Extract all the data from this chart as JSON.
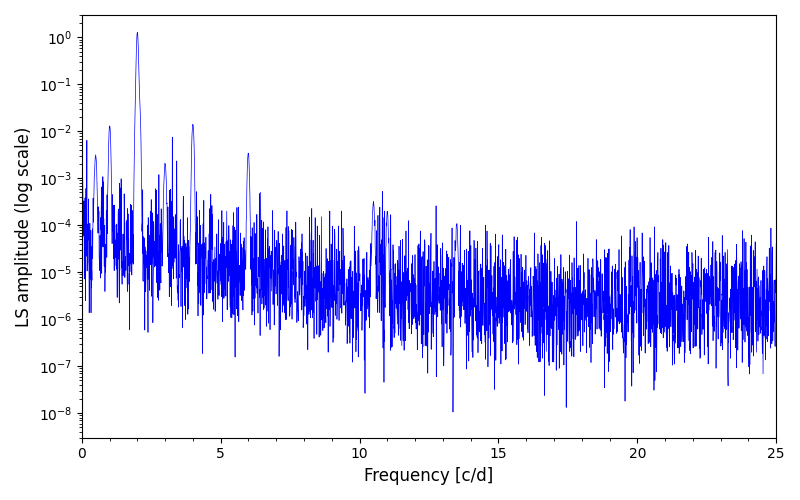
{
  "title": "",
  "xlabel": "Frequency [c/d]",
  "ylabel": "LS amplitude (log scale)",
  "xlim": [
    0,
    25
  ],
  "ylim": [
    3e-09,
    3
  ],
  "line_color": "#0000FF",
  "line_width": 0.5,
  "figsize": [
    8.0,
    5.0
  ],
  "dpi": 100,
  "background_color": "#ffffff",
  "yscale": "log",
  "freq_max": 25.0,
  "n_points": 3000,
  "seed": 12345
}
